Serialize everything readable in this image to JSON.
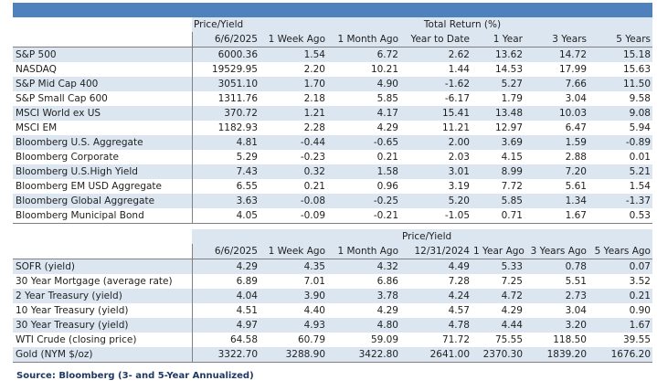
{
  "header1": {
    "group_price": "Price/Yield",
    "group_return": "Total Return (%)",
    "cols": [
      "6/6/2025",
      "1 Week Ago",
      "1 Month Ago",
      "Year to Date",
      "1 Year",
      "3 Years",
      "5 Years"
    ]
  },
  "section1": [
    {
      "name": "S&P 500",
      "v": [
        "6000.36",
        "1.54",
        "6.72",
        "2.62",
        "13.62",
        "14.72",
        "15.18"
      ]
    },
    {
      "name": "NASDAQ",
      "v": [
        "19529.95",
        "2.20",
        "10.21",
        "1.44",
        "14.53",
        "17.99",
        "15.63"
      ]
    },
    {
      "name": "S&P Mid Cap 400",
      "v": [
        "3051.10",
        "1.70",
        "4.90",
        "-1.62",
        "5.27",
        "7.66",
        "11.50"
      ]
    },
    {
      "name": "S&P Small Cap 600",
      "v": [
        "1311.76",
        "2.18",
        "5.85",
        "-6.17",
        "1.79",
        "3.04",
        "9.58"
      ]
    },
    {
      "name": "MSCI World ex US",
      "v": [
        "370.72",
        "1.21",
        "4.17",
        "15.41",
        "13.48",
        "10.03",
        "9.08"
      ]
    },
    {
      "name": "MSCI EM",
      "v": [
        "1182.93",
        "2.28",
        "4.29",
        "11.21",
        "12.97",
        "6.47",
        "5.94"
      ]
    },
    {
      "name": "Bloomberg U.S. Aggregate",
      "v": [
        "4.81",
        "-0.44",
        "-0.65",
        "2.00",
        "3.69",
        "1.59",
        "-0.89"
      ]
    },
    {
      "name": "Bloomberg Corporate",
      "v": [
        "5.29",
        "-0.23",
        "0.21",
        "2.03",
        "4.15",
        "2.88",
        "0.01"
      ]
    },
    {
      "name": "Bloomberg U.S.High Yield",
      "v": [
        "7.43",
        "0.32",
        "1.58",
        "3.01",
        "8.99",
        "7.20",
        "5.21"
      ]
    },
    {
      "name": "Bloomberg EM USD Aggregate",
      "v": [
        "6.55",
        "0.21",
        "0.96",
        "3.19",
        "7.72",
        "5.61",
        "1.54"
      ]
    },
    {
      "name": "Bloomberg Global Aggregate",
      "v": [
        "3.63",
        "-0.08",
        "-0.25",
        "5.20",
        "5.85",
        "1.34",
        "-1.37"
      ]
    },
    {
      "name": "Bloomberg Municipal Bond",
      "v": [
        "4.05",
        "-0.09",
        "-0.21",
        "-1.05",
        "0.71",
        "1.67",
        "0.53"
      ]
    }
  ],
  "header2": {
    "group_price": "Price/Yield",
    "cols": [
      "6/6/2025",
      "1 Week Ago",
      "1 Month Ago",
      "12/31/2024",
      "1 Year Ago",
      "3 Years Ago",
      "5 Years Ago"
    ]
  },
  "section2": [
    {
      "name": "SOFR (yield)",
      "v": [
        "4.29",
        "4.35",
        "4.32",
        "4.49",
        "5.33",
        "0.78",
        "0.07"
      ]
    },
    {
      "name": "30 Year Mortgage (average rate)",
      "v": [
        "6.89",
        "7.01",
        "6.86",
        "7.28",
        "7.25",
        "5.51",
        "3.52"
      ]
    },
    {
      "name": "2 Year Treasury (yield)",
      "v": [
        "4.04",
        "3.90",
        "3.78",
        "4.24",
        "4.72",
        "2.73",
        "0.21"
      ]
    },
    {
      "name": "10 Year Treasury (yield)",
      "v": [
        "4.51",
        "4.40",
        "4.29",
        "4.57",
        "4.29",
        "3.04",
        "0.90"
      ]
    },
    {
      "name": "30 Year Treasury (yield)",
      "v": [
        "4.97",
        "4.93",
        "4.80",
        "4.78",
        "4.44",
        "3.20",
        "1.67"
      ]
    },
    {
      "name": "WTI Crude (closing price)",
      "v": [
        "64.58",
        "60.79",
        "59.09",
        "71.72",
        "75.55",
        "118.50",
        "39.55"
      ]
    },
    {
      "name": "Gold (NYM $/oz)",
      "v": [
        "3322.70",
        "3288.90",
        "3422.80",
        "2641.00",
        "2370.30",
        "1839.20",
        "1676.20"
      ]
    }
  ],
  "source": "Source: Bloomberg (3- and 5-Year Annualized)",
  "colors": {
    "band": "#4f81bd",
    "stripe": "#dce6f1"
  }
}
